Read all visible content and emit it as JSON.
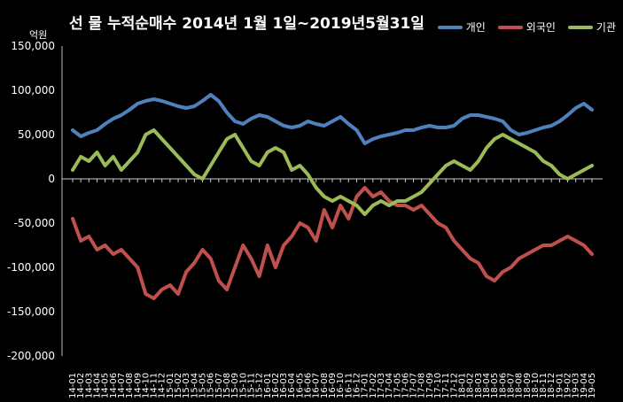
{
  "chart_data": {
    "type": "line",
    "title": "선 물 누적순매수 2014년 1월 1일~2019년5월31일",
    "y_unit": "억원",
    "ylim": [
      -200000,
      150000
    ],
    "y_ticks": [
      150000,
      100000,
      50000,
      0,
      -50000,
      -100000,
      -150000,
      -200000
    ],
    "y_tick_labels": [
      "150,000",
      "100,000",
      "50,000",
      "0",
      "-50,000",
      "-100,000",
      "-150,000",
      "-200,000"
    ],
    "x_labels": [
      "14-01",
      "14-02",
      "14-03",
      "14-04",
      "14-05",
      "14-06",
      "14-07",
      "14-08",
      "14-09",
      "14-10",
      "14-11",
      "14-12",
      "15-01",
      "15-02",
      "15-03",
      "15-04",
      "15-05",
      "15-06",
      "15-07",
      "15-08",
      "15-09",
      "15-10",
      "15-11",
      "15-12",
      "16-01",
      "16-02",
      "16-03",
      "16-04",
      "16-05",
      "16-06",
      "16-07",
      "16-08",
      "16-09",
      "16-10",
      "16-11",
      "16-12",
      "17-01",
      "17-02",
      "17-03",
      "17-04",
      "17-05",
      "17-06",
      "17-07",
      "17-08",
      "17-09",
      "17-10",
      "17-11",
      "17-12",
      "18-01",
      "18-02",
      "18-03",
      "18-04",
      "18-05",
      "18-06",
      "18-07",
      "18-08",
      "18-09",
      "18-10",
      "18-11",
      "18-12",
      "19-01",
      "19-02",
      "19-03",
      "19-04",
      "19-05"
    ],
    "legend_position": "top-right",
    "grid": false,
    "series": [
      {
        "name": "개인",
        "color": "#4F81BD",
        "values": [
          55000,
          48000,
          52000,
          55000,
          62000,
          68000,
          72000,
          78000,
          85000,
          88000,
          90000,
          88000,
          85000,
          82000,
          80000,
          82000,
          88000,
          95000,
          88000,
          75000,
          65000,
          62000,
          68000,
          72000,
          70000,
          65000,
          60000,
          58000,
          60000,
          65000,
          62000,
          60000,
          65000,
          70000,
          62000,
          55000,
          40000,
          45000,
          48000,
          50000,
          52000,
          55000,
          55000,
          58000,
          60000,
          58000,
          58000,
          60000,
          68000,
          72000,
          72000,
          70000,
          68000,
          65000,
          55000,
          50000,
          52000,
          55000,
          58000,
          60000,
          65000,
          72000,
          80000,
          85000,
          78000
        ]
      },
      {
        "name": "외국인",
        "color": "#C0504D",
        "values": [
          -45000,
          -70000,
          -65000,
          -80000,
          -75000,
          -85000,
          -80000,
          -90000,
          -100000,
          -130000,
          -135000,
          -125000,
          -120000,
          -130000,
          -105000,
          -95000,
          -80000,
          -90000,
          -115000,
          -125000,
          -100000,
          -75000,
          -90000,
          -110000,
          -75000,
          -100000,
          -75000,
          -65000,
          -50000,
          -55000,
          -70000,
          -35000,
          -55000,
          -30000,
          -45000,
          -20000,
          -10000,
          -20000,
          -15000,
          -25000,
          -30000,
          -30000,
          -35000,
          -30000,
          -40000,
          -50000,
          -55000,
          -70000,
          -80000,
          -90000,
          -95000,
          -110000,
          -115000,
          -105000,
          -100000,
          -90000,
          -85000,
          -80000,
          -75000,
          -75000,
          -70000,
          -65000,
          -70000,
          -75000,
          -85000
        ]
      },
      {
        "name": "기관",
        "color": "#9BBB59",
        "values": [
          10000,
          25000,
          20000,
          30000,
          15000,
          25000,
          10000,
          20000,
          30000,
          50000,
          55000,
          45000,
          35000,
          25000,
          15000,
          5000,
          0,
          15000,
          30000,
          45000,
          50000,
          35000,
          20000,
          15000,
          30000,
          35000,
          30000,
          10000,
          15000,
          5000,
          -10000,
          -20000,
          -25000,
          -20000,
          -25000,
          -30000,
          -40000,
          -30000,
          -25000,
          -30000,
          -25000,
          -25000,
          -20000,
          -15000,
          -5000,
          5000,
          15000,
          20000,
          15000,
          10000,
          20000,
          35000,
          45000,
          50000,
          45000,
          40000,
          35000,
          30000,
          20000,
          15000,
          5000,
          0,
          5000,
          10000,
          15000
        ]
      }
    ]
  }
}
